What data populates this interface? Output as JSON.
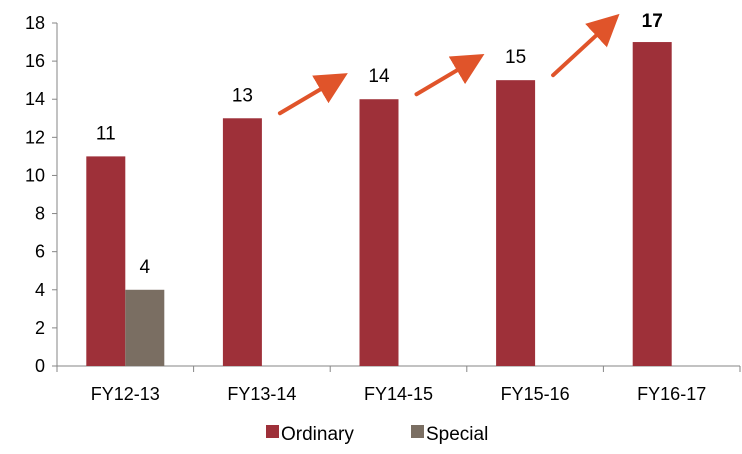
{
  "chart_data": {
    "type": "bar",
    "categories": [
      "FY12-13",
      "FY13-14",
      "FY14-15",
      "FY15-16",
      "FY16-17"
    ],
    "series": [
      {
        "name": "Ordinary",
        "values": [
          11,
          13,
          14,
          15,
          17
        ],
        "color": "#9e3039"
      },
      {
        "name": "Special",
        "values": [
          4,
          null,
          null,
          null,
          null
        ],
        "color": "#7a6e62"
      }
    ],
    "ylim": [
      0,
      18
    ],
    "yticks": [
      0,
      2,
      4,
      6,
      8,
      10,
      12,
      14,
      16,
      18
    ],
    "legend_position": "bottom",
    "bold_label_index": 4,
    "annotations": {
      "type": "arrow",
      "color": "#e0542a",
      "between_categories": [
        [
          1,
          2
        ],
        [
          2,
          3
        ],
        [
          3,
          4
        ]
      ]
    },
    "grid": false
  }
}
